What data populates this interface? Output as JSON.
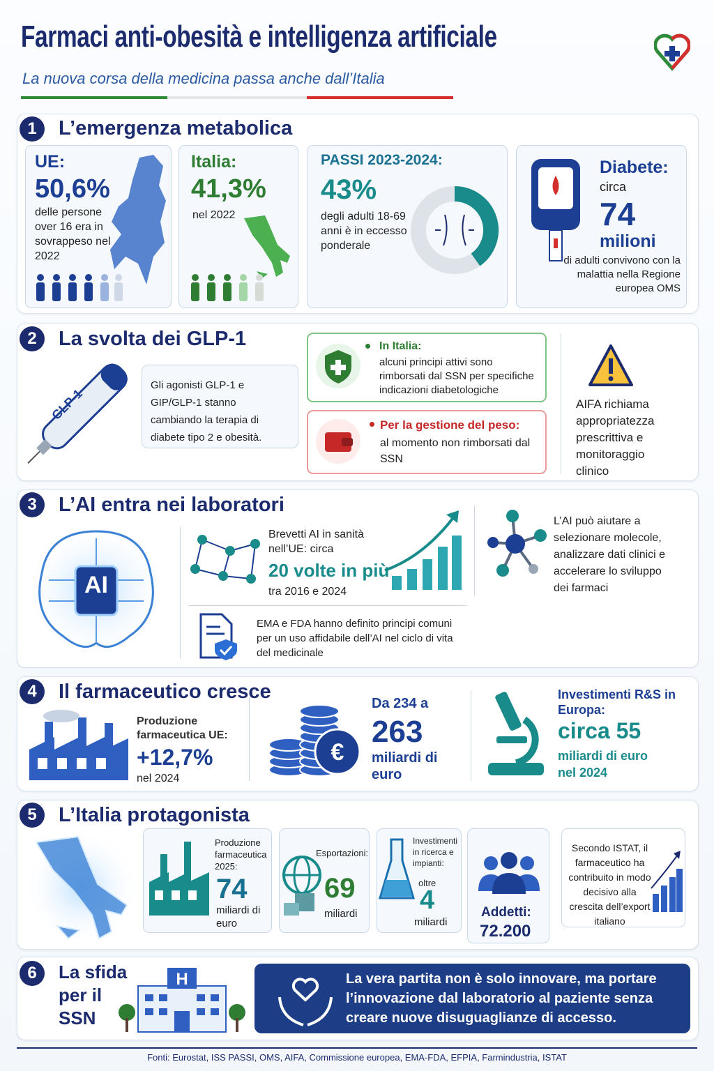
{
  "header": {
    "title": "Farmaci anti-obesità e intelligenza artificiale",
    "subtitle": "La nuova corsa della medicina passa anche dall’Italia"
  },
  "sections": [
    {
      "number": "1",
      "title": "L’emergenza metabolica",
      "cards": [
        {
          "label": "UE:",
          "value": "50,6%",
          "text": "delle persone over 16 era in sovrappeso nel 2022"
        },
        {
          "label": "Italia:",
          "value": "41,3%",
          "text": "nel 2022"
        },
        {
          "label": "PASSI 2023-2024:",
          "value": "43%",
          "text": "degli adulti 18-69 anni è in eccesso ponderale"
        },
        {
          "label": "Diabete:",
          "prefix": "circa",
          "value": "74",
          "unit": "milioni",
          "text": "di adulti convivono con la malattia nella Regione europea OMS"
        }
      ]
    },
    {
      "number": "2",
      "title": "La svolta dei GLP-1",
      "pen_label": "GLP-1",
      "intro": "Gli agonisti GLP-1 e GIP/GLP-1 stanno cambiando la terapia di diabete tipo 2 e obesità.",
      "cards": [
        {
          "title": "In Italia:",
          "text": "alcuni principi attivi sono rimborsati dal SSN per specifiche indicazioni diabetologiche"
        },
        {
          "title": "Per la gestione del peso:",
          "text": "al momento non rimborsati dal SSN"
        }
      ],
      "note": "AIFA richiama appropriatezza prescrittiva e monitoraggio clinico"
    },
    {
      "number": "3",
      "title": "L’AI entra nei laboratori",
      "brain_label": "AI",
      "patents": {
        "text": "Brevetti AI in sanità nell’UE: circa",
        "value": "20 volte in più",
        "period": "tra 2016 e 2024"
      },
      "molecules": "L’AI può aiutare a selezionare molecole, analizzare dati clinici e accelerare lo sviluppo dei farmaci",
      "regulation": "EMA e FDA hanno definito principi comuni per un uso affidabile dell’AI nel ciclo di vita del medicinale"
    },
    {
      "number": "4",
      "title": "Il farmaceutico cresce",
      "production": {
        "label": "Produzione farmaceutica UE:",
        "value": "+12,7%",
        "period": "nel 2024"
      },
      "value_growth": {
        "label": "Da 234 a",
        "value": "263",
        "unit": "miliardi di euro"
      },
      "research": {
        "label": "Investimenti R&S in Europa:",
        "value": "circa 55",
        "unit": "miliardi di euro nel 2024"
      }
    },
    {
      "number": "5",
      "title": "L’Italia protagonista",
      "cards": [
        {
          "label": "Produzione farmaceutica 2025:",
          "value": "74",
          "unit": "miliardi di euro"
        },
        {
          "label": "Esportazioni:",
          "value": "69",
          "unit": "miliardi"
        },
        {
          "label": "Investimenti in ricerca e impianti:",
          "prefix": "oltre",
          "value": "4",
          "unit": "miliardi"
        },
        {
          "label": "Addetti:",
          "value": "72.200"
        }
      ],
      "note": "Secondo ISTAT, il farmaceutico ha contribuito in modo decisivo alla crescita dell’export italiano"
    },
    {
      "number": "6",
      "title": "La sfida per il SSN",
      "message": "La vera partita non è solo innovare, ma portare l’innovazione dal laboratorio al paziente senza creare nuove disuguaglianze di accesso."
    }
  ],
  "footer": "Fonti: Eurostat, ISS PASSI, OMS, AIFA, Commissione europea, EMA-FDA, EFPIA, Farmindustria, ISTAT"
}
